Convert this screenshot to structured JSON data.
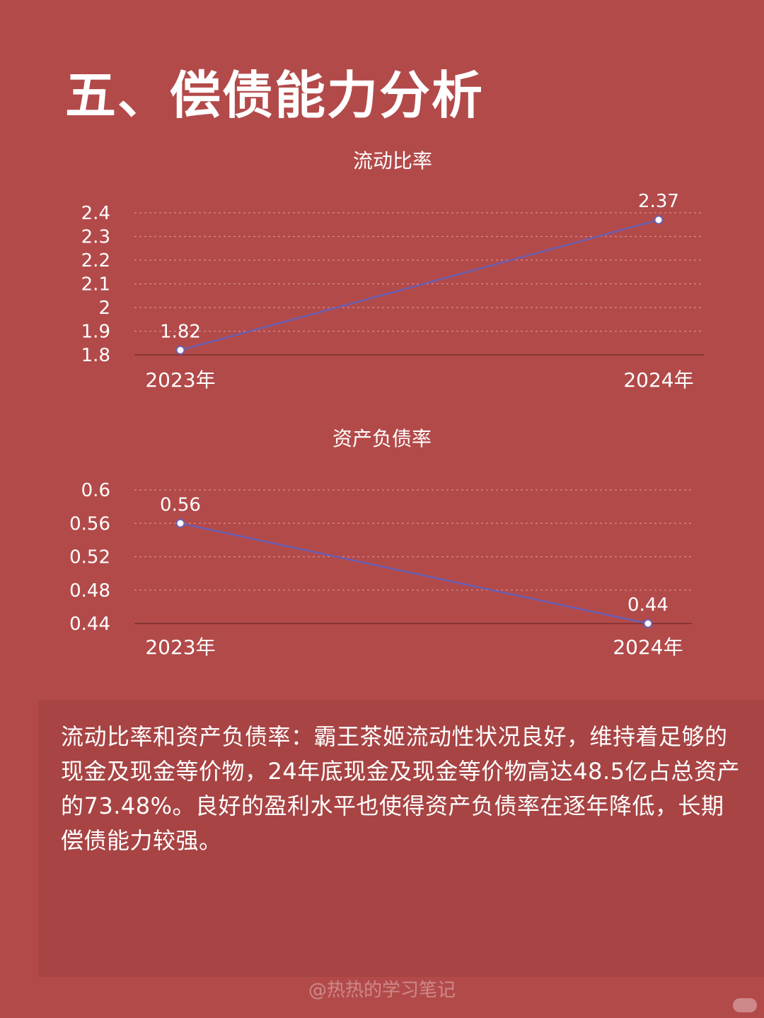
{
  "page": {
    "title": "五、偿债能力分析",
    "text": "流动比率和资产负债率：霸王茶姬流动性状况良好，维持着足够的现金及现金等价物，24年底现金及现金等价物高达48.5亿占总资产的73.48%。良好的盈利水平也使得资产负债率在逐年降低，长期偿债能力较强。",
    "watermark": "@热热的学习笔记"
  },
  "colors": {
    "background": "#b34a4a",
    "text_panel": "#a84444",
    "line": "#6a5fb0",
    "gridline": "#d98a8a",
    "axis": "#7a2e2e"
  },
  "chart_data": [
    {
      "type": "line",
      "title": "流动比率",
      "categories": [
        "2023年",
        "2024年"
      ],
      "series": [
        {
          "values": [
            1.82,
            2.37
          ]
        }
      ],
      "data_labels": [
        "1.82",
        "2.37"
      ],
      "yticks": [
        "1.8",
        "1.9",
        "2",
        "2.1",
        "2.2",
        "2.3",
        "2.4"
      ],
      "ylim": [
        1.8,
        2.4
      ],
      "grid": true
    },
    {
      "type": "line",
      "title": "资产负债率",
      "categories": [
        "2023年",
        "2024年"
      ],
      "series": [
        {
          "values": [
            0.56,
            0.44
          ]
        }
      ],
      "data_labels": [
        "0.56",
        "0.44"
      ],
      "yticks": [
        "0.44",
        "0.48",
        "0.52",
        "0.56",
        "0.6"
      ],
      "ylim": [
        0.44,
        0.6
      ],
      "grid": true
    }
  ]
}
